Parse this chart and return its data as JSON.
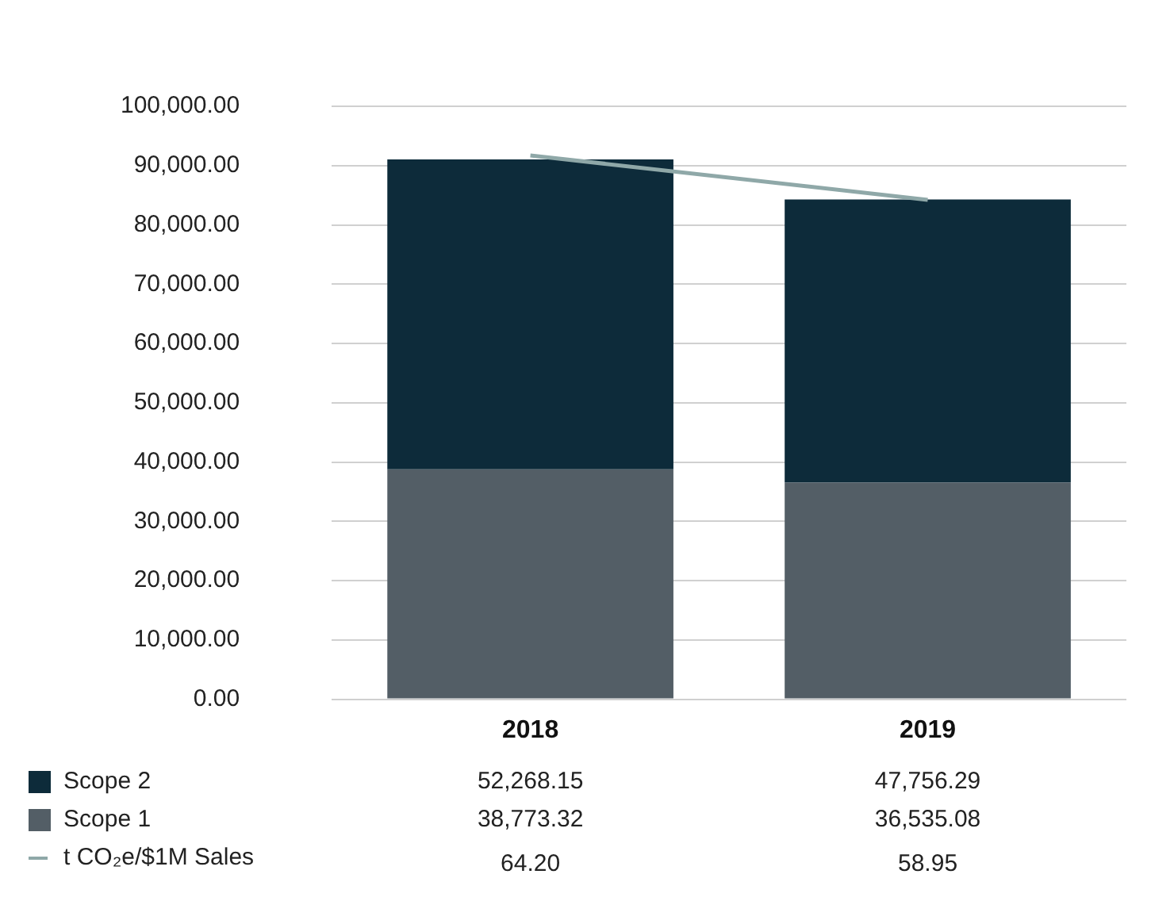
{
  "chart_data": {
    "type": "bar",
    "stacked": true,
    "categories": [
      "2018",
      "2019"
    ],
    "series": [
      {
        "name": "Scope 1",
        "color": "#535e66",
        "values": [
          38773.32,
          36535.08
        ],
        "value_labels": [
          "38,773.32",
          "36,535.08"
        ]
      },
      {
        "name": "Scope 2",
        "color": "#0d2b3a",
        "values": [
          52268.15,
          47756.29
        ],
        "value_labels": [
          "52,268.15",
          "47,756.29"
        ]
      },
      {
        "name": "t CO₂e/$1M Sales",
        "type": "line",
        "axis": "y2",
        "color": "#8fa8a8",
        "values": [
          64.2,
          58.95
        ],
        "value_labels": [
          "64.20",
          "58.95"
        ]
      }
    ],
    "ylim": [
      0,
      100000
    ],
    "yticks": [
      {
        "value": 0,
        "label": "0.00"
      },
      {
        "value": 10000,
        "label": "10,000.00"
      },
      {
        "value": 20000,
        "label": "20,000.00"
      },
      {
        "value": 30000,
        "label": "30,000.00"
      },
      {
        "value": 40000,
        "label": "40,000.00"
      },
      {
        "value": 50000,
        "label": "50,000.00"
      },
      {
        "value": 60000,
        "label": "60,000.00"
      },
      {
        "value": 70000,
        "label": "70,000.00"
      },
      {
        "value": 80000,
        "label": "80,000.00"
      },
      {
        "value": 90000,
        "label": "90,000.00"
      },
      {
        "value": 100000,
        "label": "100,000.00"
      }
    ],
    "grid": "y",
    "legend": "bottom left",
    "marker": "none"
  }
}
